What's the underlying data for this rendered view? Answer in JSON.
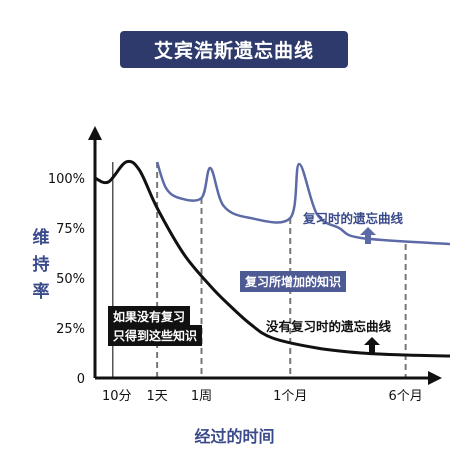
{
  "chart_data": {
    "type": "line",
    "title": "艾宾浩斯遗忘曲线",
    "xlabel": "经过的时间",
    "ylabel": "维持率",
    "x_ticks": [
      "10分",
      "1天",
      "1周",
      "1个月",
      "6个月"
    ],
    "y_ticks": [
      "0",
      "25%",
      "50%",
      "75%",
      "100%"
    ],
    "ylim": [
      0,
      100
    ],
    "series": [
      {
        "name": "没有复习时的遗忘曲线",
        "color": "#111111",
        "points": [
          [
            0,
            100
          ],
          [
            0.3,
            98
          ],
          [
            0.7,
            108
          ],
          [
            1,
            104
          ],
          [
            1.4,
            85
          ],
          [
            2,
            62
          ],
          [
            2.6,
            46
          ],
          [
            3,
            37
          ],
          [
            3.5,
            27
          ],
          [
            4,
            20
          ],
          [
            5,
            15
          ],
          [
            6,
            12.5
          ],
          [
            7,
            11.5
          ],
          [
            8,
            11
          ]
        ]
      },
      {
        "name": "复习时的遗忘曲线",
        "color": "#5c6aa6",
        "points": [
          [
            1.4,
            108
          ],
          [
            1.6,
            95
          ],
          [
            1.9,
            90
          ],
          [
            2.4,
            90
          ],
          [
            2.6,
            105
          ],
          [
            2.9,
            86
          ],
          [
            3.5,
            80
          ],
          [
            4.4,
            80
          ],
          [
            4.6,
            107
          ],
          [
            5,
            82
          ],
          [
            5.5,
            75
          ],
          [
            6,
            70
          ],
          [
            8,
            67
          ]
        ]
      }
    ],
    "annotations": {
      "no_review_box": [
        "如果没有复习",
        "只得到这些知识"
      ],
      "gained_box": "复习所增加的知识",
      "review_curve_label": "复习时的遗忘曲线",
      "no_review_curve_label": "没有复习时的遗忘曲线"
    },
    "colors": {
      "title_bg": "#2e3a6b",
      "accent": "#3b4a8a",
      "review_curve": "#5c6aa6",
      "forget_curve": "#111111"
    }
  }
}
